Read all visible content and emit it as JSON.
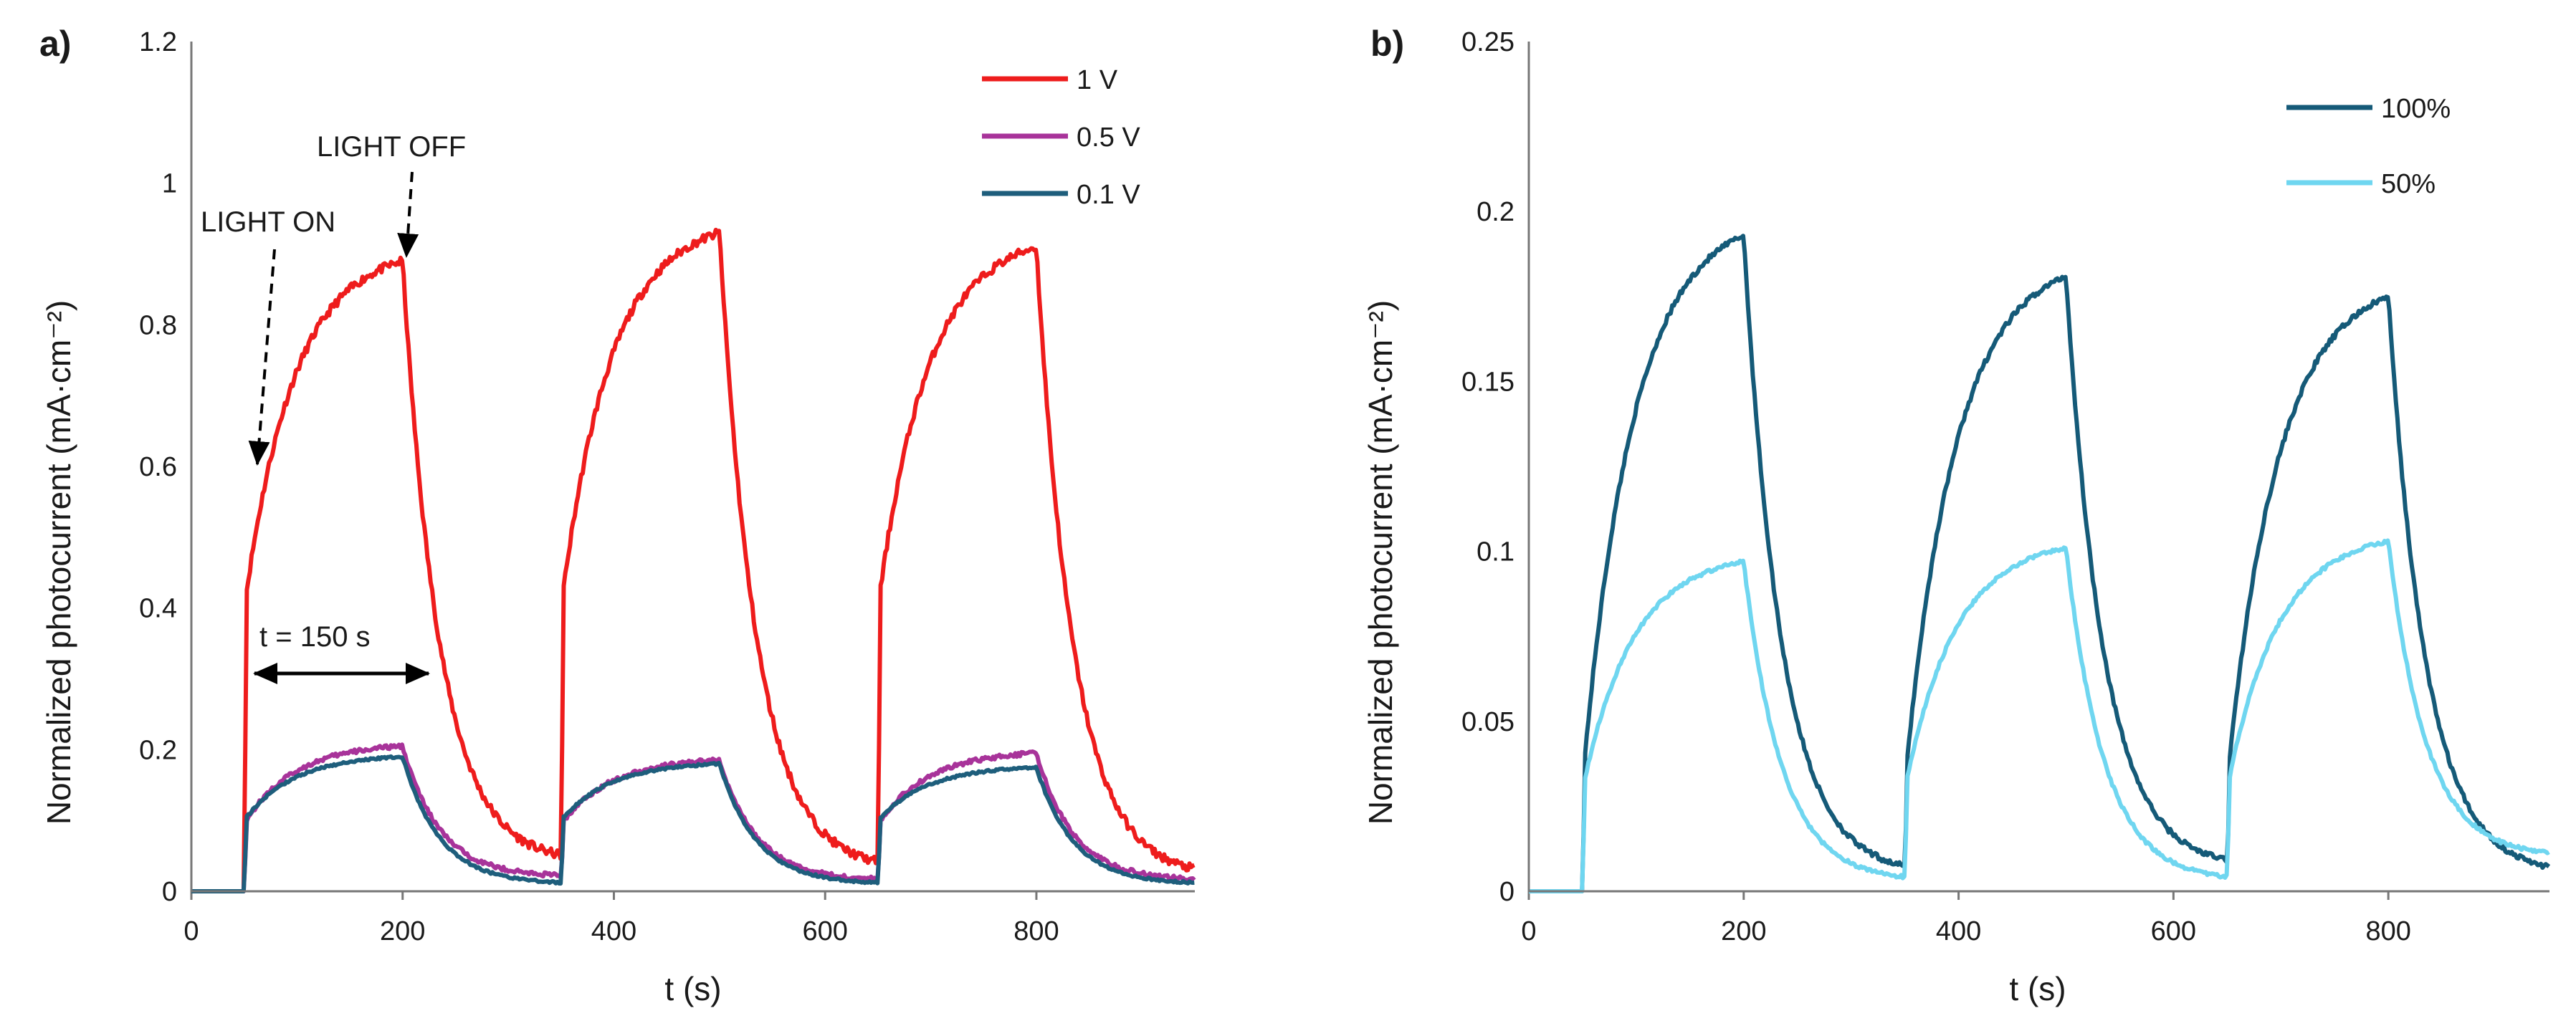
{
  "figure": {
    "panels": [
      "a)",
      "b)"
    ]
  },
  "chart_data": [
    {
      "type": "line",
      "panel_label": "a)",
      "xlabel": "t (s)",
      "ylabel": "Normalized photocurrent (mA·cm⁻²)",
      "xlim": [
        0,
        950
      ],
      "ylim": [
        0,
        1.2
      ],
      "x_ticks": [
        "0",
        "200",
        "400",
        "600",
        "800"
      ],
      "y_ticks": [
        "0",
        "0.2",
        "0.4",
        "0.6",
        "0.8",
        "1",
        "1.2"
      ],
      "grid": false,
      "legend_position": "top-right",
      "light_cycles": [
        [
          50,
          200
        ],
        [
          350,
          500
        ],
        [
          650,
          800
        ]
      ],
      "series": [
        {
          "name": "1 V",
          "color": "#ee1c1c",
          "plateau": [
            0.89,
            0.93,
            0.91
          ],
          "jump": 0.4,
          "decay_end": [
            0.04,
            0.03,
            0.02
          ],
          "noise": 0.006
        },
        {
          "name": "0.5 V",
          "color": "#a8339a",
          "plateau": [
            0.205,
            0.185,
            0.195
          ],
          "jump": 0.095,
          "decay_end": [
            0.02,
            0.015,
            0.015
          ],
          "noise": 0.003
        },
        {
          "name": "0.1 V",
          "color": "#1e5e7c",
          "plateau": [
            0.19,
            0.18,
            0.175
          ],
          "jump": 0.1,
          "decay_end": [
            0.01,
            0.01,
            0.01
          ],
          "noise": 0.0015
        }
      ],
      "annotations": {
        "light_on": "LIGHT ON",
        "light_off": "LIGHT OFF",
        "interval": "t = 150 s"
      }
    },
    {
      "type": "line",
      "panel_label": "b)",
      "xlabel": "t (s)",
      "ylabel": "Normalized photocurrent (mA·cm⁻²)",
      "xlim": [
        0,
        950
      ],
      "ylim": [
        0,
        0.25
      ],
      "x_ticks": [
        "0",
        "200",
        "400",
        "600",
        "800"
      ],
      "y_ticks": [
        "0",
        "0.05",
        "0.1",
        "0.15",
        "0.2",
        "0.25"
      ],
      "grid": false,
      "legend_position": "top-right",
      "light_cycles": [
        [
          50,
          200
        ],
        [
          350,
          500
        ],
        [
          650,
          800
        ]
      ],
      "series": [
        {
          "name": "100%",
          "color": "#155a78",
          "plateau": [
            0.193,
            0.181,
            0.175
          ],
          "jump": 0.032,
          "decay_end": [
            0.005,
            0.007,
            0.005
          ],
          "noise": 0.0008
        },
        {
          "name": "50%",
          "color": "#6fd6f0",
          "plateau": [
            0.097,
            0.101,
            0.103
          ],
          "jump": 0.03,
          "decay_end": [
            0.003,
            0.003,
            0.01
          ],
          "noise": 0.0005
        }
      ]
    }
  ]
}
